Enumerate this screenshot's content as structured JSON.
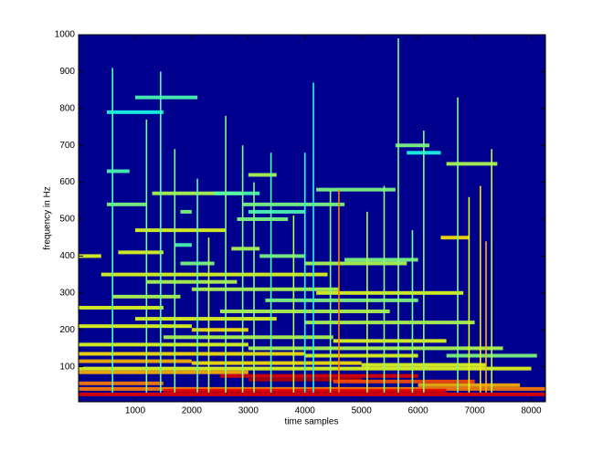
{
  "chart_data": {
    "type": "spectrogram",
    "xlabel": "time samples",
    "ylabel": "frequency in Hz",
    "xlim": [
      0,
      8250
    ],
    "ylim": [
      5,
      1000
    ],
    "xticks": [
      1000,
      2000,
      3000,
      4000,
      5000,
      6000,
      7000,
      8000
    ],
    "yticks": [
      100,
      200,
      300,
      400,
      500,
      600,
      700,
      800,
      900,
      1000
    ],
    "background": "#00008f",
    "streaks": [
      [
        1000,
        2100,
        830,
        0.45
      ],
      [
        500,
        1500,
        790,
        0.4
      ],
      [
        5600,
        6200,
        700,
        0.5
      ],
      [
        5800,
        6400,
        680,
        0.4
      ],
      [
        6500,
        7400,
        650,
        0.55
      ],
      [
        3000,
        3500,
        620,
        0.55
      ],
      [
        500,
        900,
        630,
        0.45
      ],
      [
        1300,
        2900,
        570,
        0.55
      ],
      [
        2400,
        3200,
        570,
        0.45
      ],
      [
        4200,
        5600,
        580,
        0.5
      ],
      [
        500,
        1200,
        540,
        0.5
      ],
      [
        1800,
        2000,
        520,
        0.5
      ],
      [
        2900,
        4700,
        540,
        0.5
      ],
      [
        3000,
        4000,
        520,
        0.45
      ],
      [
        2800,
        3700,
        500,
        0.5
      ],
      [
        1000,
        2600,
        470,
        0.6
      ],
      [
        0,
        400,
        400,
        0.6
      ],
      [
        4700,
        6000,
        390,
        0.5
      ],
      [
        4000,
        5800,
        380,
        0.55
      ],
      [
        3200,
        4000,
        400,
        0.5
      ],
      [
        700,
        1500,
        410,
        0.6
      ],
      [
        1700,
        2000,
        430,
        0.45
      ],
      [
        2700,
        3200,
        420,
        0.55
      ],
      [
        6400,
        6900,
        450,
        0.65
      ],
      [
        1800,
        2400,
        380,
        0.5
      ],
      [
        400,
        4400,
        350,
        0.6
      ],
      [
        1200,
        2800,
        330,
        0.55
      ],
      [
        2000,
        4600,
        310,
        0.55
      ],
      [
        4200,
        6800,
        300,
        0.6
      ],
      [
        600,
        1800,
        290,
        0.55
      ],
      [
        3300,
        6000,
        280,
        0.5
      ],
      [
        0,
        1500,
        260,
        0.6
      ],
      [
        2500,
        5500,
        250,
        0.55
      ],
      [
        1000,
        3500,
        230,
        0.6
      ],
      [
        4000,
        7000,
        220,
        0.55
      ],
      [
        0,
        2000,
        210,
        0.6
      ],
      [
        2000,
        3000,
        200,
        0.65
      ],
      [
        1500,
        4500,
        180,
        0.55
      ],
      [
        4500,
        6500,
        170,
        0.6
      ],
      [
        0,
        3000,
        160,
        0.6
      ],
      [
        3000,
        7500,
        150,
        0.55
      ],
      [
        0,
        4000,
        135,
        0.65
      ],
      [
        4000,
        6000,
        130,
        0.6
      ],
      [
        6500,
        8100,
        130,
        0.5
      ],
      [
        0,
        2000,
        115,
        0.7
      ],
      [
        2000,
        5000,
        110,
        0.65
      ],
      [
        5000,
        7200,
        105,
        0.6
      ],
      [
        0,
        8000,
        95,
        0.6
      ],
      [
        0,
        3000,
        85,
        0.7
      ],
      [
        2500,
        6000,
        75,
        0.9
      ],
      [
        3000,
        5000,
        65,
        0.95
      ],
      [
        4500,
        7000,
        60,
        0.8
      ],
      [
        0,
        1500,
        55,
        0.75
      ],
      [
        6000,
        7800,
        50,
        0.7
      ],
      [
        0,
        8250,
        40,
        0.75
      ],
      [
        1500,
        6500,
        35,
        0.9
      ],
      [
        0,
        8250,
        25,
        0.9
      ]
    ],
    "spikes": [
      [
        600,
        30,
        910,
        0.45
      ],
      [
        1450,
        30,
        900,
        0.45
      ],
      [
        1200,
        30,
        770,
        0.5
      ],
      [
        1700,
        30,
        690,
        0.5
      ],
      [
        2100,
        30,
        610,
        0.45
      ],
      [
        2600,
        30,
        780,
        0.5
      ],
      [
        2900,
        30,
        700,
        0.5
      ],
      [
        3400,
        30,
        680,
        0.45
      ],
      [
        3800,
        30,
        510,
        0.55
      ],
      [
        4000,
        30,
        680,
        0.4
      ],
      [
        4150,
        30,
        870,
        0.4
      ],
      [
        4600,
        30,
        580,
        0.75
      ],
      [
        4450,
        30,
        580,
        0.5
      ],
      [
        5100,
        30,
        520,
        0.55
      ],
      [
        5400,
        30,
        590,
        0.5
      ],
      [
        5650,
        30,
        990,
        0.5
      ],
      [
        6100,
        30,
        740,
        0.5
      ],
      [
        6700,
        30,
        830,
        0.5
      ],
      [
        6900,
        30,
        560,
        0.6
      ],
      [
        7100,
        30,
        590,
        0.65
      ],
      [
        7300,
        30,
        690,
        0.55
      ],
      [
        3100,
        30,
        600,
        0.5
      ],
      [
        2300,
        30,
        450,
        0.55
      ],
      [
        5900,
        30,
        470,
        0.5
      ],
      [
        7200,
        30,
        440,
        0.7
      ]
    ]
  }
}
